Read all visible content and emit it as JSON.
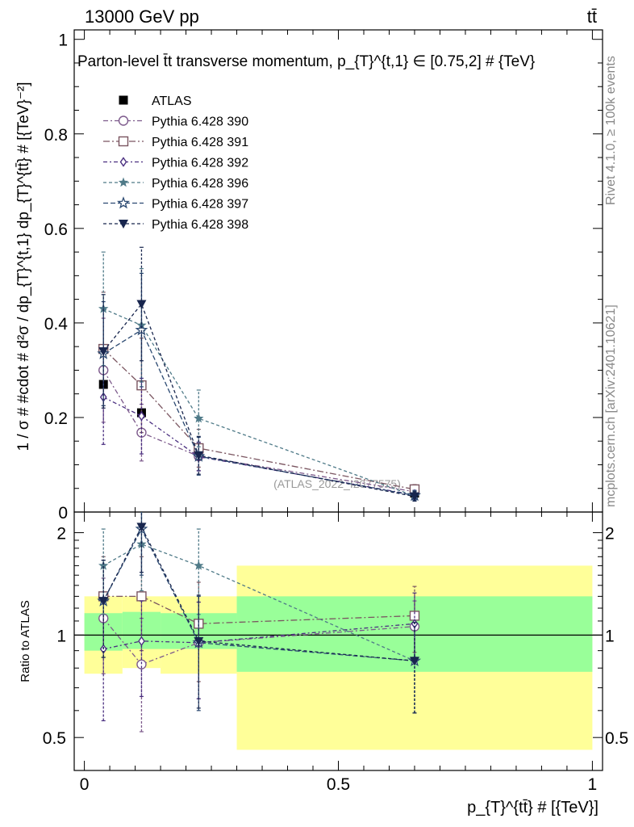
{
  "header": {
    "energy_label": "13000 GeV pp",
    "process_label": "tt̄"
  },
  "side_labels": {
    "rivet": "Rivet 4.1.0, ≥ 100k events",
    "mcplots": "mcplots.cern.ch [arXiv:2401.10621]"
  },
  "watermark": "(ATLAS_2022_I2077575)",
  "colors": {
    "ATLAS": "#000000",
    "390": "#7d5a8c",
    "391": "#7a5560",
    "392": "#4a2f80",
    "396": "#4f7a88",
    "397": "#2c4a72",
    "398": "#18264e",
    "band_outer": "#ffff99",
    "band_inner": "#99ff99"
  },
  "chart_data": [
    {
      "type": "scatter",
      "panel": "main",
      "title": "Parton-level t̄t transverse momentum, p_{T}^{t,1} ∈ [0.75,2] # {TeV}",
      "xlabel": "",
      "ylabel": "1 / σ # #cdot # d²σ / dp_{T}^{t,1} dp_{T}^{tt̄} # [{TeV}⁻²]",
      "xlim": [
        -0.02,
        1.02
      ],
      "ylim": [
        0,
        1.02
      ],
      "yticks": [
        0,
        0.2,
        0.4,
        0.6,
        0.8,
        1
      ],
      "ytick_labels": [
        "0",
        "0.2",
        "0.4",
        "0.6",
        "0.8",
        "1"
      ],
      "grid": false,
      "legend_position": "top-left",
      "x": [
        0.0375,
        0.1125,
        0.225,
        0.65
      ],
      "series": [
        {
          "name": "ATLAS",
          "key": "ATLAS",
          "marker": "filled-square",
          "values": [
            0.27,
            0.21,
            0.125,
            0.04
          ],
          "errors": [
            0.005,
            0.005,
            0.005,
            0.003
          ]
        },
        {
          "name": "Pythia 6.428 390",
          "key": "390",
          "marker": "open-circle",
          "dash": "6,3,2,3",
          "values": [
            0.3,
            0.168,
            0.118,
            0.043
          ],
          "errors": [
            0.11,
            0.06,
            0.03,
            0.01
          ]
        },
        {
          "name": "Pythia 6.428 391",
          "key": "391",
          "marker": "open-square",
          "dash": "8,3,2,3",
          "values": [
            0.345,
            0.268,
            0.135,
            0.048
          ],
          "errors": [
            0.12,
            0.1,
            0.04,
            0.01
          ]
        },
        {
          "name": "Pythia 6.428 392",
          "key": "392",
          "marker": "open-diamond",
          "dash": "5,3,2,3",
          "values": [
            0.243,
            0.203,
            0.117,
            0.036
          ],
          "errors": [
            0.1,
            0.08,
            0.03,
            0.01
          ]
        },
        {
          "name": "Pythia 6.428 396",
          "key": "396",
          "marker": "filled-star",
          "dash": "4,3",
          "values": [
            0.43,
            0.395,
            0.198,
            0.034
          ],
          "errors": [
            0.12,
            0.12,
            0.06,
            0.01
          ]
        },
        {
          "name": "Pythia 6.428 397",
          "key": "397",
          "marker": "open-star",
          "dash": "6,3",
          "values": [
            0.335,
            0.385,
            0.118,
            0.035
          ],
          "errors": [
            0.11,
            0.12,
            0.04,
            0.01
          ]
        },
        {
          "name": "Pythia 6.428 398",
          "key": "398",
          "marker": "filled-down-triangle",
          "dash": "4,3",
          "values": [
            0.34,
            0.44,
            0.12,
            0.033
          ],
          "errors": [
            0.12,
            0.12,
            0.04,
            0.01
          ]
        }
      ]
    },
    {
      "type": "scatter",
      "panel": "ratio",
      "xlabel": "p_{T}^{tt̄} # [{TeV}]",
      "ylabel": "Ratio to ATLAS",
      "xlim": [
        -0.02,
        1.02
      ],
      "ylim": [
        0.4,
        2.3
      ],
      "xticks": [
        0,
        0.5,
        1
      ],
      "xtick_labels": [
        "0",
        "0.5",
        "1"
      ],
      "yticks": [
        0.5,
        1,
        2
      ],
      "ytick_labels": [
        "0.5",
        "1",
        "2"
      ],
      "yscale": "log",
      "bins": [
        {
          "lo": 0,
          "hi": 0.075,
          "inner": [
            0.9,
            1.16
          ],
          "outer": [
            0.77,
            1.3
          ]
        },
        {
          "lo": 0.075,
          "hi": 0.15,
          "inner": [
            0.91,
            1.17
          ],
          "outer": [
            0.8,
            1.3
          ]
        },
        {
          "lo": 0.15,
          "hi": 0.3,
          "inner": [
            0.91,
            1.16
          ],
          "outer": [
            0.77,
            1.3
          ]
        },
        {
          "lo": 0.3,
          "hi": 1,
          "inner": [
            0.78,
            1.3
          ],
          "outer": [
            0.46,
            1.6
          ]
        }
      ],
      "x": [
        0.0375,
        0.1125,
        0.225,
        0.65
      ],
      "series": [
        {
          "name": "Pythia 6.428 390",
          "key": "390",
          "values": [
            1.12,
            0.82,
            0.95,
            1.06
          ],
          "errors": [
            0.35,
            0.3,
            0.3,
            0.2
          ]
        },
        {
          "name": "Pythia 6.428 391",
          "key": "391",
          "values": [
            1.3,
            1.3,
            1.08,
            1.14
          ],
          "errors": [
            0.4,
            0.4,
            0.35,
            0.25
          ]
        },
        {
          "name": "Pythia 6.428 392",
          "key": "392",
          "values": [
            0.91,
            0.96,
            0.95,
            1.08
          ],
          "errors": [
            0.35,
            0.3,
            0.3,
            0.25
          ]
        },
        {
          "name": "Pythia 6.428 396",
          "key": "396",
          "values": [
            1.6,
            1.85,
            1.6,
            0.84
          ],
          "errors": [
            0.45,
            0.5,
            0.45,
            0.25
          ]
        },
        {
          "name": "Pythia 6.428 397",
          "key": "397",
          "values": [
            1.26,
            2.05,
            0.95,
            0.84
          ],
          "errors": [
            0.4,
            0.55,
            0.35,
            0.25
          ]
        },
        {
          "name": "Pythia 6.428 398",
          "key": "398",
          "values": [
            1.26,
            2.08,
            0.96,
            0.84
          ],
          "errors": [
            0.4,
            0.55,
            0.35,
            0.25
          ]
        }
      ]
    }
  ]
}
